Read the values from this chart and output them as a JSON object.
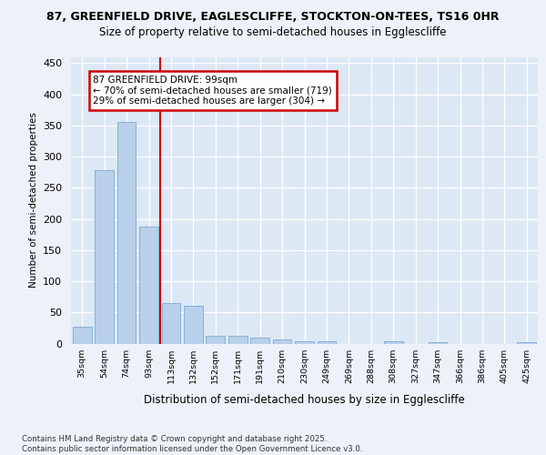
{
  "title1": "87, GREENFIELD DRIVE, EAGLESCLIFFE, STOCKTON-ON-TEES, TS16 0HR",
  "title2": "Size of property relative to semi-detached houses in Egglescliffe",
  "xlabel": "Distribution of semi-detached houses by size in Egglescliffe",
  "ylabel": "Number of semi-detached properties",
  "categories": [
    "35sqm",
    "54sqm",
    "74sqm",
    "93sqm",
    "113sqm",
    "132sqm",
    "152sqm",
    "171sqm",
    "191sqm",
    "210sqm",
    "230sqm",
    "249sqm",
    "269sqm",
    "288sqm",
    "308sqm",
    "327sqm",
    "347sqm",
    "366sqm",
    "386sqm",
    "405sqm",
    "425sqm"
  ],
  "values": [
    27,
    278,
    355,
    188,
    65,
    60,
    12,
    12,
    10,
    6,
    4,
    4,
    0,
    0,
    4,
    0,
    2,
    0,
    0,
    0,
    2
  ],
  "bar_color": "#b8d0ea",
  "bar_edge_color": "#7aaad0",
  "vline_color": "#cc0000",
  "vline_x": 3.5,
  "annotation_text": "87 GREENFIELD DRIVE: 99sqm\n← 70% of semi-detached houses are smaller (719)\n29% of semi-detached houses are larger (304) →",
  "annotation_box_edgecolor": "#cc0000",
  "background_color": "#edf2fa",
  "plot_bg_color": "#dde8f5",
  "grid_color": "#ffffff",
  "footer_text": "Contains HM Land Registry data © Crown copyright and database right 2025.\nContains public sector information licensed under the Open Government Licence v3.0.",
  "ylim": [
    0,
    460
  ],
  "yticks": [
    0,
    50,
    100,
    150,
    200,
    250,
    300,
    350,
    400,
    450
  ]
}
